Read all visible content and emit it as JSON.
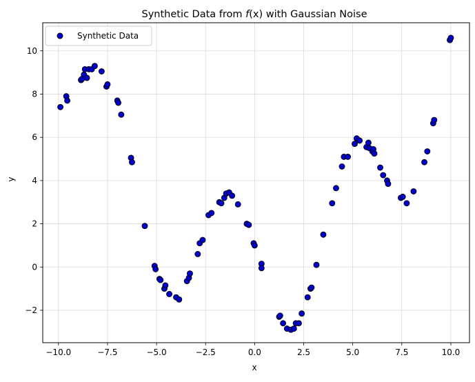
{
  "chart_data": {
    "type": "scatter",
    "title_prefix": "Synthetic Data from ",
    "title_fx": "f",
    "title_arg": "(x)",
    "title_suffix": " with Gaussian Noise",
    "xlabel": "x",
    "ylabel": "y",
    "xlim": [
      -10.8,
      10.95
    ],
    "ylim": [
      -3.5,
      11.3
    ],
    "xticks": [
      -10.0,
      -7.5,
      -5.0,
      -2.5,
      0.0,
      2.5,
      5.0,
      7.5,
      10.0
    ],
    "xtick_labels": [
      "−10.0",
      "−7.5",
      "−5.0",
      "−2.5",
      "0.0",
      "2.5",
      "5.0",
      "7.5",
      "10.0"
    ],
    "yticks": [
      -2,
      0,
      2,
      4,
      6,
      8,
      10
    ],
    "ytick_labels": [
      "−2",
      "0",
      "2",
      "4",
      "6",
      "8",
      "10"
    ],
    "grid": true,
    "legend_position": "top-left",
    "marker_color": "#0000cc",
    "marker_edge_color": "#000000",
    "grid_color": "#d9d9d9",
    "series": [
      {
        "name": "Synthetic Data",
        "points": [
          [
            -9.9,
            7.4
          ],
          [
            -9.6,
            7.9
          ],
          [
            -9.55,
            7.7
          ],
          [
            -8.85,
            8.65
          ],
          [
            -8.8,
            8.7
          ],
          [
            -8.7,
            8.9
          ],
          [
            -8.65,
            9.15
          ],
          [
            -8.55,
            8.75
          ],
          [
            -8.45,
            9.15
          ],
          [
            -8.3,
            9.15
          ],
          [
            -8.15,
            9.3
          ],
          [
            -7.8,
            9.05
          ],
          [
            -7.55,
            8.35
          ],
          [
            -7.5,
            8.45
          ],
          [
            -7.0,
            7.7
          ],
          [
            -6.95,
            7.6
          ],
          [
            -6.8,
            7.05
          ],
          [
            -6.3,
            5.05
          ],
          [
            -6.25,
            4.85
          ],
          [
            -5.6,
            1.9
          ],
          [
            -5.1,
            0.05
          ],
          [
            -5.05,
            -0.1
          ],
          [
            -4.85,
            -0.55
          ],
          [
            -4.8,
            -0.6
          ],
          [
            -4.6,
            -1.0
          ],
          [
            -4.55,
            -0.85
          ],
          [
            -4.35,
            -1.25
          ],
          [
            -4.0,
            -1.4
          ],
          [
            -3.85,
            -1.5
          ],
          [
            -3.45,
            -0.65
          ],
          [
            -3.35,
            -0.5
          ],
          [
            -3.3,
            -0.3
          ],
          [
            -2.9,
            0.6
          ],
          [
            -2.8,
            1.1
          ],
          [
            -2.65,
            1.25
          ],
          [
            -2.35,
            2.4
          ],
          [
            -2.2,
            2.5
          ],
          [
            -1.8,
            3.0
          ],
          [
            -1.7,
            2.95
          ],
          [
            -1.55,
            3.2
          ],
          [
            -1.45,
            3.4
          ],
          [
            -1.3,
            3.45
          ],
          [
            -1.15,
            3.3
          ],
          [
            -0.85,
            2.9
          ],
          [
            -0.4,
            2.0
          ],
          [
            -0.3,
            1.95
          ],
          [
            -0.05,
            1.1
          ],
          [
            0.0,
            1.0
          ],
          [
            0.35,
            0.15
          ],
          [
            0.35,
            -0.05
          ],
          [
            1.25,
            -2.3
          ],
          [
            1.3,
            -2.25
          ],
          [
            1.45,
            -2.6
          ],
          [
            1.65,
            -2.85
          ],
          [
            1.85,
            -2.9
          ],
          [
            2.0,
            -2.85
          ],
          [
            2.1,
            -2.6
          ],
          [
            2.25,
            -2.6
          ],
          [
            2.4,
            -2.15
          ],
          [
            2.7,
            -1.4
          ],
          [
            2.85,
            -1.0
          ],
          [
            2.9,
            -0.95
          ],
          [
            3.15,
            0.1
          ],
          [
            3.5,
            1.5
          ],
          [
            3.95,
            2.95
          ],
          [
            4.15,
            3.65
          ],
          [
            4.45,
            4.65
          ],
          [
            4.55,
            5.1
          ],
          [
            4.75,
            5.1
          ],
          [
            5.1,
            5.7
          ],
          [
            5.2,
            5.95
          ],
          [
            5.35,
            5.85
          ],
          [
            5.7,
            5.55
          ],
          [
            5.8,
            5.75
          ],
          [
            5.85,
            5.5
          ],
          [
            6.0,
            5.35
          ],
          [
            6.05,
            5.45
          ],
          [
            6.1,
            5.25
          ],
          [
            6.4,
            4.6
          ],
          [
            6.55,
            4.25
          ],
          [
            6.75,
            4.0
          ],
          [
            6.8,
            3.85
          ],
          [
            7.45,
            3.2
          ],
          [
            7.55,
            3.25
          ],
          [
            7.75,
            2.95
          ],
          [
            8.1,
            3.5
          ],
          [
            8.65,
            4.85
          ],
          [
            8.8,
            5.35
          ],
          [
            9.1,
            6.65
          ],
          [
            9.15,
            6.8
          ],
          [
            9.95,
            10.5
          ],
          [
            10.0,
            10.6
          ]
        ]
      }
    ]
  }
}
